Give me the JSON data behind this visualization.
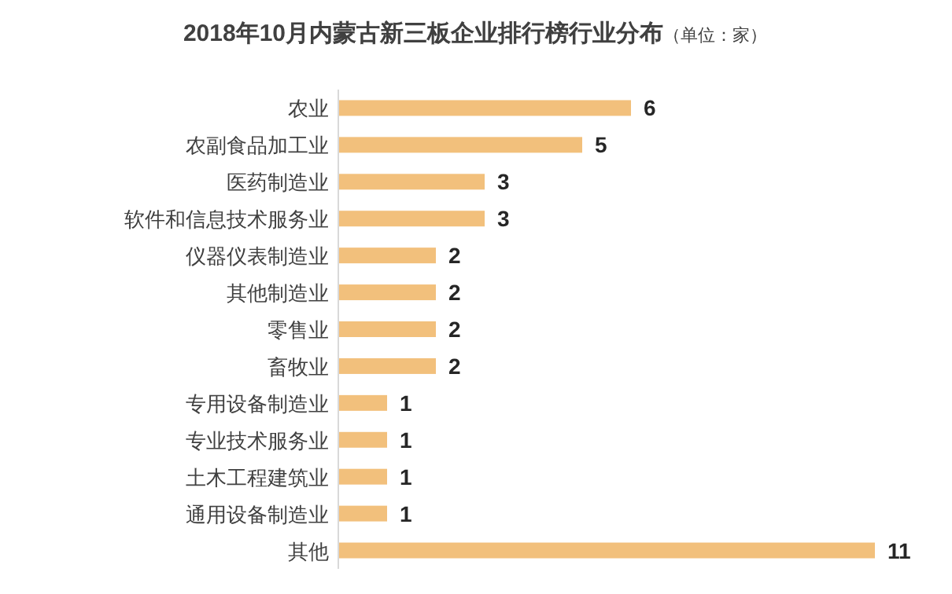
{
  "chart_data": {
    "type": "bar",
    "orientation": "horizontal",
    "title": "2018年10月内蒙古新三板企业排行榜行业分布",
    "subtitle": "（单位：家）",
    "categories": [
      "农业",
      "农副食品加工业",
      "医药制造业",
      "软件和信息技术服务业",
      "仪器仪表制造业",
      "其他制造业",
      "零售业",
      "畜牧业",
      "专用设备制造业",
      "专业技术服务业",
      "土木工程建筑业",
      "通用设备制造业",
      "其他"
    ],
    "values": [
      6,
      5,
      3,
      3,
      2,
      2,
      2,
      2,
      1,
      1,
      1,
      1,
      11
    ],
    "color": "#f2c07c",
    "data_labels": true
  }
}
